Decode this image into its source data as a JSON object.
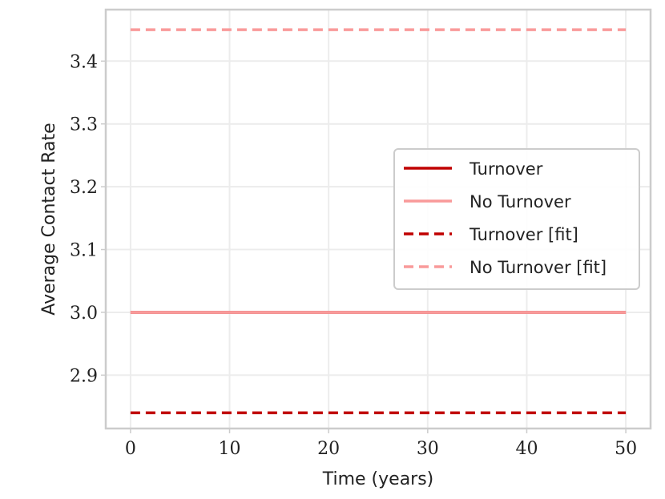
{
  "chart_data": {
    "type": "line",
    "xlabel": "Time (years)",
    "ylabel": "Average Contact Rate",
    "xlim": [
      -2.5,
      52.5
    ],
    "ylim": [
      2.815,
      3.482
    ],
    "xticks": [
      0,
      10,
      20,
      30,
      40,
      50
    ],
    "yticks": [
      2.9,
      3.0,
      3.1,
      3.2,
      3.3,
      3.4
    ],
    "xtick_labels": [
      "0",
      "10",
      "20",
      "30",
      "40",
      "50"
    ],
    "ytick_labels": [
      "2.9",
      "3.0",
      "3.1",
      "3.2",
      "3.3",
      "3.4"
    ],
    "grid": true,
    "legend_position": "center-right",
    "series": [
      {
        "name": "Turnover",
        "color": "#c00000",
        "style": "solid",
        "x": [
          0,
          50
        ],
        "y": [
          3.0,
          3.0
        ]
      },
      {
        "name": "No Turnover",
        "color": "#f99a9a",
        "style": "solid",
        "x": [
          0,
          50
        ],
        "y": [
          3.0,
          3.0
        ]
      },
      {
        "name": "Turnover [fit]",
        "color": "#c00000",
        "style": "dashed",
        "x": [
          0,
          50
        ],
        "y": [
          2.84,
          2.84
        ]
      },
      {
        "name": "No Turnover [fit]",
        "color": "#f99a9a",
        "style": "dashed",
        "x": [
          0,
          50
        ],
        "y": [
          3.45,
          3.45
        ]
      }
    ]
  }
}
